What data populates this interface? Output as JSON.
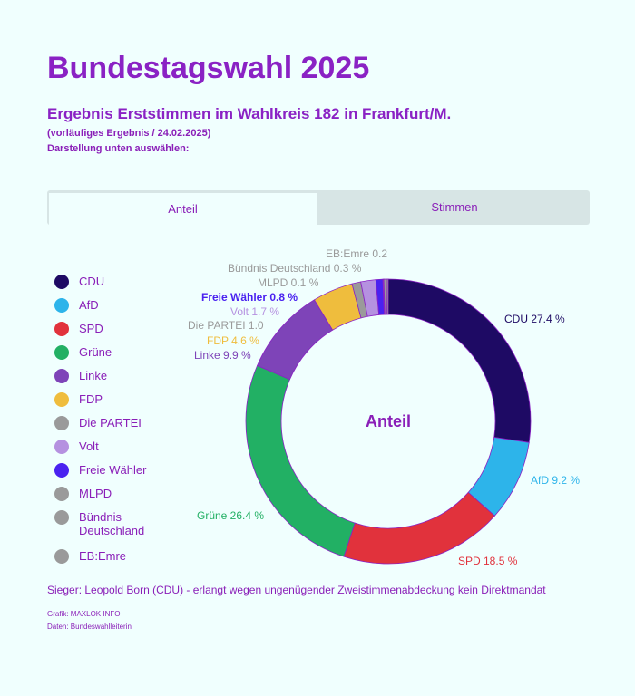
{
  "title": "Bundestagswahl 2025",
  "subtitle": "Ergebnis Erststimmen im Wahlkreis 182 in Frankfurt/M.",
  "note": "(vorläufiges Ergebnis / 24.02.2025)",
  "instruction": "Darstellung unten auswählen:",
  "tabs": [
    {
      "label": "Anteil",
      "active": true
    },
    {
      "label": "Stimmen",
      "active": false
    }
  ],
  "chart_data": {
    "type": "pie",
    "variant": "donut",
    "center_label": "Anteil",
    "unit": "%",
    "categories": [
      "CDU",
      "AfD",
      "SPD",
      "Grüne",
      "Linke",
      "FDP",
      "Die PARTEI",
      "Volt",
      "Freie Wähler",
      "MLPD",
      "Bündnis Deutschland",
      "EB:Emre"
    ],
    "values": [
      27.4,
      9.2,
      18.5,
      26.4,
      9.9,
      4.6,
      1.0,
      1.7,
      0.8,
      0.1,
      0.3,
      0.2
    ],
    "colors": [
      "#1e0a64",
      "#2db4ea",
      "#e1323c",
      "#22b064",
      "#7e44b8",
      "#efbd3d",
      "#9a9a9a",
      "#b591e0",
      "#4a22f0",
      "#9a9a9a",
      "#9a9a9a",
      "#9a9a9a"
    ],
    "data_labels": [
      "CDU 27.4 %",
      "AfD 9.2 %",
      "SPD 18.5 %",
      "Grüne 26.4 %",
      "Linke 9.9 %",
      "FDP 4.6 %",
      "Die PARTEI 1.0",
      "Volt 1.7 %",
      "Freie Wähler 0.8 %",
      "MLPD 0.1 %",
      "Bündnis Deutschland 0.3 %",
      "EB:Emre 0.2"
    ],
    "legend": [
      "CDU",
      "AfD",
      "SPD",
      "Grüne",
      "Linke",
      "FDP",
      "Die PARTEI",
      "Volt",
      "Freie Wähler",
      "MLPD",
      "Bündnis\nDeutschland",
      "EB:Emre"
    ],
    "legend_position": "left"
  },
  "footer": {
    "winner": "Sieger: Leopold Born (CDU) - erlangt wegen ungenügender Zweistimmenabdeckung kein Direktmandat",
    "credit": "Grafik: MAXLOK INFO",
    "source": "Daten: Bundeswahlleiterin"
  }
}
